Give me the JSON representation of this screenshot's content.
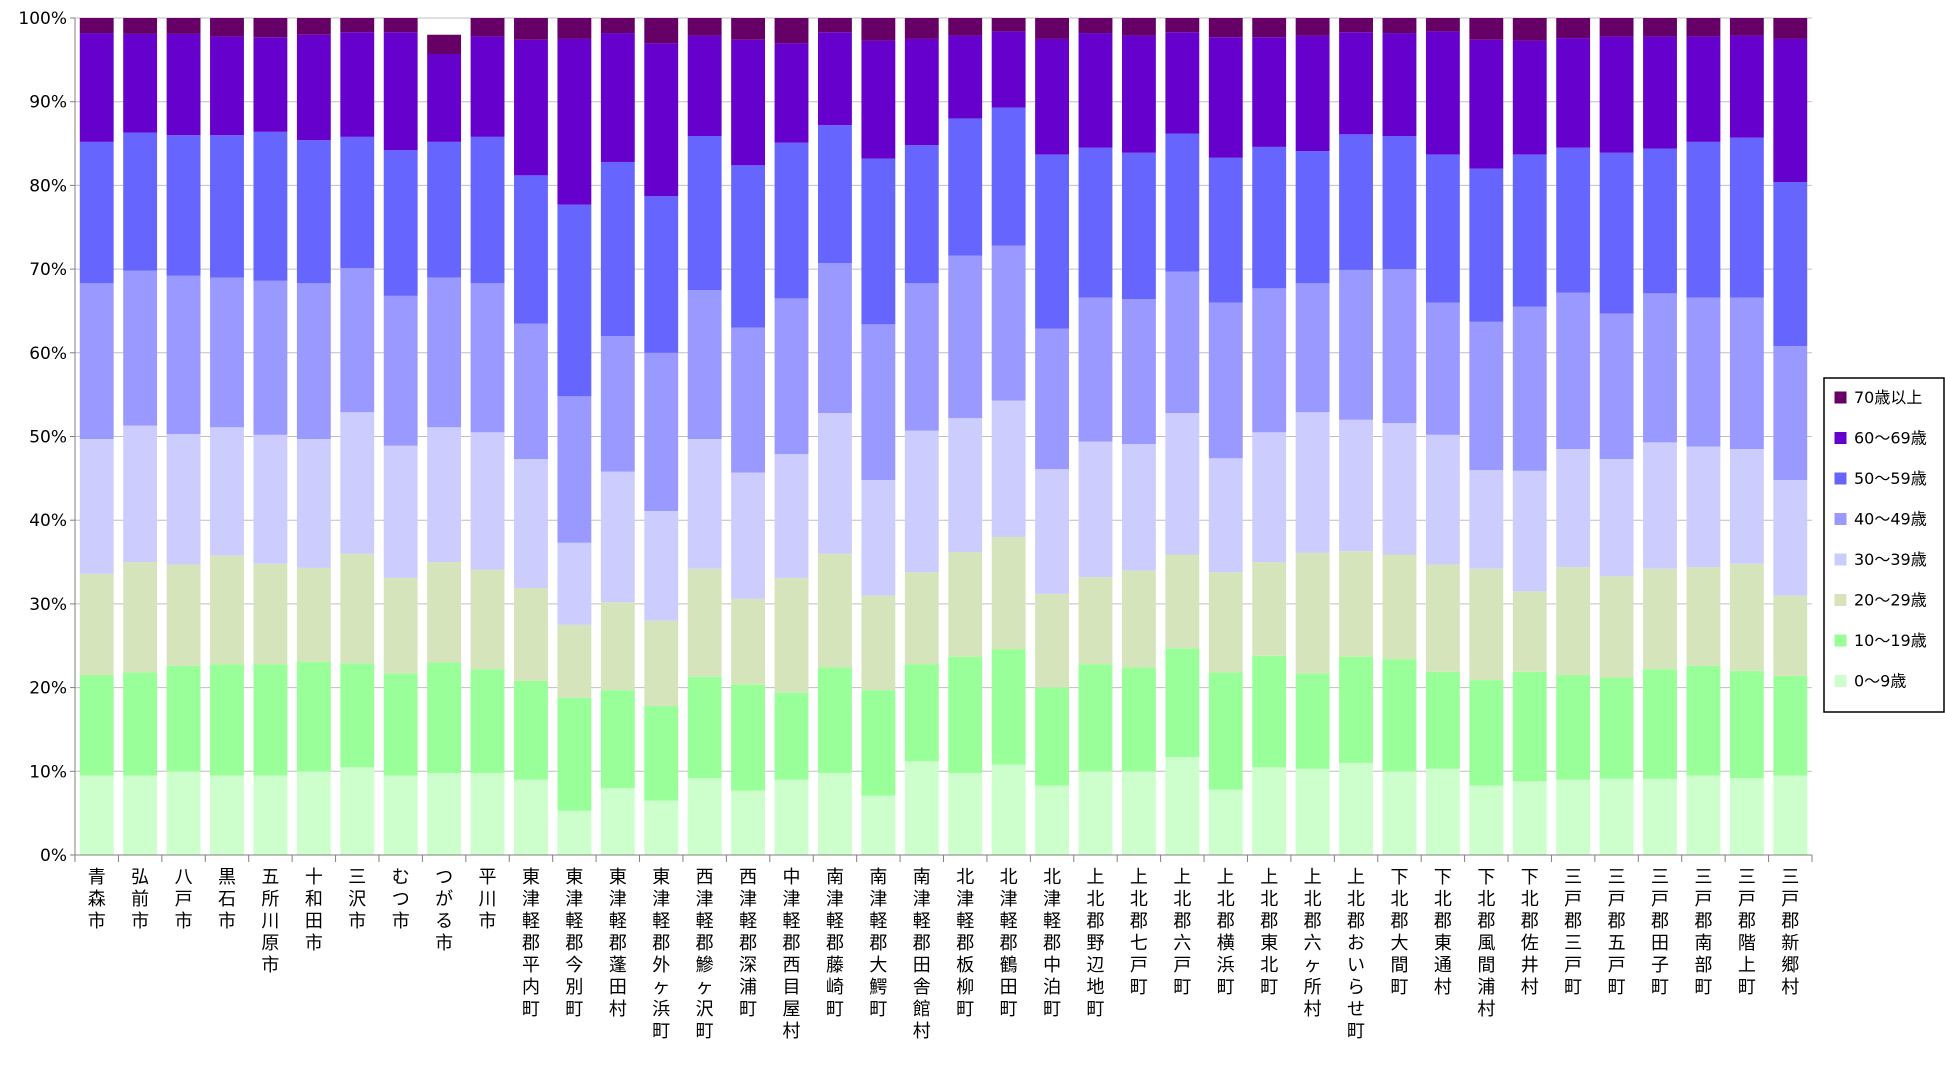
{
  "chart_data": {
    "type": "bar",
    "stacked": "percent",
    "title": "",
    "xlabel": "",
    "ylabel": "",
    "ylim": [
      0,
      100
    ],
    "yticks": [
      "0%",
      "10%",
      "20%",
      "30%",
      "40%",
      "50%",
      "60%",
      "70%",
      "80%",
      "90%",
      "100%"
    ],
    "grid": true,
    "legend_position": "right",
    "categories": [
      "青森市",
      "弘前市",
      "八戸市",
      "黒石市",
      "五所川原市",
      "十和田市",
      "三沢市",
      "むつ市",
      "つがる市",
      "平川市",
      "東津軽郡平内町",
      "東津軽郡今別町",
      "東津軽郡蓬田村",
      "東津軽郡外ヶ浜町",
      "西津軽郡鰺ヶ沢町",
      "西津軽郡深浦町",
      "中津軽郡西目屋村",
      "南津軽郡藤崎町",
      "南津軽郡大鰐町",
      "南津軽郡田舎館村",
      "北津軽郡板柳町",
      "北津軽郡鶴田町",
      "北津軽郡中泊町",
      "上北郡野辺地町",
      "上北郡七戸町",
      "上北郡六戸町",
      "上北郡横浜町",
      "上北郡東北町",
      "上北郡六ヶ所村",
      "上北郡おいらせ町",
      "下北郡大間町",
      "下北郡東通村",
      "下北郡風間浦村",
      "下北郡佐井村",
      "三戸郡三戸町",
      "三戸郡五戸町",
      "三戸郡田子町",
      "三戸郡南部町",
      "三戸郡階上町",
      "三戸郡新郷村"
    ],
    "series": [
      {
        "name": "0～9歳",
        "color": "#ccffcc",
        "values": [
          9.5,
          9.5,
          10,
          9.5,
          9.5,
          10,
          10.5,
          9.5,
          9.8,
          9.8,
          9,
          5.3,
          8,
          6.5,
          9.2,
          7.7,
          9,
          9.8,
          7.1,
          11.2,
          9.8,
          10.8,
          8.3,
          10,
          10,
          11.7,
          7.8,
          10.5,
          10.3,
          11,
          10,
          10.3,
          8.3,
          8.8,
          9,
          9.1,
          9.1,
          9.5,
          9.2,
          9.5
        ]
      },
      {
        "name": "10～19歳",
        "color": "#99ff99",
        "values": [
          12,
          12.3,
          12.6,
          13.3,
          13.3,
          13.1,
          12.4,
          12.2,
          13.2,
          12.4,
          11.8,
          13.5,
          11.7,
          11.3,
          12.1,
          12.7,
          10.4,
          12.6,
          12.6,
          11.6,
          13.9,
          13.8,
          11.7,
          12.8,
          12.4,
          13,
          14,
          13.3,
          11.4,
          12.7,
          13.4,
          11.6,
          12.6,
          13.1,
          12.5,
          12.1,
          13.1,
          13.1,
          12.8,
          11.9
        ]
      },
      {
        "name": "20～29歳",
        "color": "#d6e4bc",
        "values": [
          12.1,
          13.2,
          12.1,
          13,
          12,
          11.2,
          13.1,
          11.4,
          12,
          11.9,
          11.1,
          8.7,
          10.5,
          10.2,
          12.9,
          10.2,
          13.7,
          13.6,
          11.3,
          11,
          12.5,
          13.4,
          11.2,
          10.4,
          11.6,
          11.2,
          12,
          11.2,
          14.4,
          12.6,
          12.5,
          12.8,
          13.3,
          9.6,
          12.9,
          12.1,
          12,
          11.8,
          12.8,
          9.6
        ]
      },
      {
        "name": "30～39歳",
        "color": "#ccccff",
        "values": [
          16.1,
          16.3,
          15.6,
          15.3,
          15.4,
          15.4,
          16.9,
          15.8,
          16.1,
          16.4,
          15.4,
          9.8,
          15.6,
          13.1,
          15.5,
          15.1,
          14.8,
          16.8,
          13.8,
          16.9,
          16,
          16.3,
          14.9,
          16.2,
          15.1,
          16.9,
          13.6,
          15.5,
          16.8,
          15.7,
          15.7,
          15.5,
          11.8,
          14.4,
          14.1,
          14,
          15.1,
          14.4,
          13.7,
          13.8
        ]
      },
      {
        "name": "40～49歳",
        "color": "#9999ff",
        "values": [
          18.6,
          18.5,
          18.9,
          17.9,
          18.4,
          18.6,
          17.2,
          17.9,
          17.9,
          17.8,
          16.2,
          17.5,
          16.2,
          18.9,
          17.8,
          17.3,
          18.6,
          17.9,
          18.6,
          17.6,
          19.4,
          18.5,
          16.8,
          17.2,
          17.3,
          16.9,
          18.6,
          17.2,
          15.4,
          17.9,
          18.4,
          15.8,
          17.7,
          19.6,
          18.7,
          17.4,
          17.8,
          17.8,
          18.1,
          16
        ]
      },
      {
        "name": "50～59歳",
        "color": "#6666ff",
        "values": [
          16.9,
          16.5,
          16.8,
          17,
          17.8,
          17.1,
          15.7,
          17.4,
          16.2,
          17.5,
          17.7,
          22.9,
          20.8,
          18.7,
          18.4,
          19.4,
          18.6,
          16.5,
          19.8,
          16.5,
          16.4,
          16.5,
          20.8,
          17.9,
          17.5,
          16.5,
          17.3,
          16.9,
          15.8,
          16.2,
          15.9,
          17.7,
          18.3,
          18.2,
          17.3,
          19.2,
          17.3,
          18.6,
          19.1,
          19.6
        ]
      },
      {
        "name": "60～69歳",
        "color": "#6600cc",
        "values": [
          13,
          11.8,
          12.1,
          11.8,
          11.3,
          12.6,
          12.5,
          14.1,
          10.5,
          12,
          16.2,
          19.8,
          15.4,
          18.3,
          12,
          15,
          11.9,
          11.1,
          14.1,
          12.7,
          9.9,
          9.1,
          13.8,
          13.7,
          14,
          12.1,
          14.4,
          13.1,
          13.8,
          12.2,
          12.3,
          14.7,
          15.4,
          13.6,
          13.1,
          13.9,
          13.4,
          12.6,
          12.2,
          17.1
        ]
      },
      {
        "name": "70歳以上",
        "color": "#660066",
        "values": [
          1.8,
          1.9,
          1.9,
          2.2,
          2.3,
          2,
          1.7,
          1.7,
          2.3,
          2.2,
          2.6,
          2.5,
          1.8,
          3,
          2.1,
          2.6,
          3,
          1.7,
          2.7,
          2.5,
          2.1,
          1.6,
          2.5,
          1.8,
          2.1,
          1.7,
          2.3,
          2.3,
          2.1,
          1.7,
          1.8,
          1.6,
          2.6,
          2.7,
          2.4,
          2.2,
          2.2,
          2.2,
          2.1,
          2.5
        ]
      }
    ]
  }
}
